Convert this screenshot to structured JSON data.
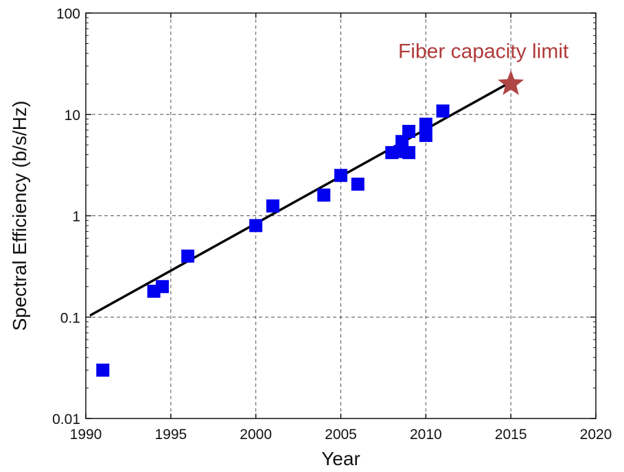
{
  "chart_data": {
    "type": "scatter",
    "title": "",
    "xlabel": "Year",
    "ylabel": "Spectral Efficiency (b/s/Hz)",
    "xlim": [
      1990,
      2020
    ],
    "ylim": [
      0.01,
      100
    ],
    "yscale": "log",
    "grid": true,
    "x_ticks": [
      1990,
      1995,
      2000,
      2005,
      2010,
      2015,
      2020
    ],
    "x_tick_labels": [
      "1990",
      "1995",
      "2000",
      "2005",
      "2010",
      "2015",
      "2020"
    ],
    "y_ticks": [
      0.01,
      0.1,
      1,
      10,
      100
    ],
    "y_tick_labels": [
      "0.01",
      "0.1",
      "1",
      "10",
      "100"
    ],
    "series": [
      {
        "marker": "square",
        "color": "#0000ee",
        "points": [
          {
            "x": 1991,
            "y": 0.03
          },
          {
            "x": 1994,
            "y": 0.18
          },
          {
            "x": 1994.5,
            "y": 0.2
          },
          {
            "x": 1996,
            "y": 0.4
          },
          {
            "x": 2000,
            "y": 0.8
          },
          {
            "x": 2001,
            "y": 1.25
          },
          {
            "x": 2004,
            "y": 1.6
          },
          {
            "x": 2005,
            "y": 2.5
          },
          {
            "x": 2006,
            "y": 2.05
          },
          {
            "x": 2008,
            "y": 4.2
          },
          {
            "x": 2008.5,
            "y": 4.3
          },
          {
            "x": 2008.6,
            "y": 5.4
          },
          {
            "x": 2009,
            "y": 4.2
          },
          {
            "x": 2009,
            "y": 6.8
          },
          {
            "x": 2010,
            "y": 6.2
          },
          {
            "x": 2010,
            "y": 8.0
          },
          {
            "x": 2011,
            "y": 10.8
          }
        ]
      },
      {
        "type": "line",
        "color": "#000000",
        "points": [
          {
            "x": 1990.3,
            "y": 0.105
          },
          {
            "x": 2014.8,
            "y": 20
          }
        ]
      }
    ],
    "annotations": [
      {
        "text": "Fiber capacity limit",
        "x": 2015,
        "y": 20,
        "marker": "star",
        "color": "#b04545"
      }
    ]
  }
}
